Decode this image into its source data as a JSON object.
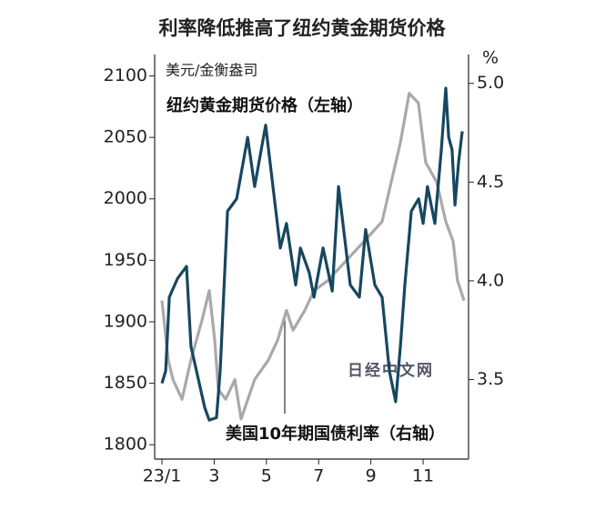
{
  "chart_data": {
    "type": "line",
    "title": "利率降低推高了纽约黄金期货价格",
    "y_label": "美元/金衡盎司",
    "y2_label": "%",
    "annotation": "日经中文网",
    "xlim": [
      0.72,
      12.74
    ],
    "xticks": [
      {
        "value": 1,
        "label": "23/1"
      },
      3,
      5,
      7,
      9,
      11
    ],
    "ylim": [
      1792,
      2110
    ],
    "yticks": [
      1800,
      1850,
      1900,
      1950,
      2000,
      2050,
      2100
    ],
    "y2lim": [
      3.12,
      5.1
    ],
    "y2ticks": [
      {
        "value": 3.5,
        "label": "3.5"
      },
      {
        "value": 4,
        "label": "4.0"
      },
      {
        "value": 4.5,
        "label": "4.5"
      },
      {
        "value": 5,
        "label": "5.0"
      }
    ],
    "series": [
      {
        "name": "纽约黄金期货价格（左轴）",
        "color": "#17475f",
        "axis": "y",
        "x": [
          1.0,
          1.14,
          1.28,
          1.59,
          1.94,
          2.11,
          2.64,
          2.81,
          3.09,
          3.23,
          3.51,
          3.86,
          4.28,
          4.55,
          4.97,
          5.25,
          5.53,
          5.77,
          6.12,
          6.3,
          6.64,
          6.82,
          7.17,
          7.52,
          7.76,
          8.21,
          8.56,
          8.8,
          9.15,
          9.43,
          9.71,
          9.95,
          10.13,
          10.3,
          10.55,
          10.83,
          11.0,
          11.17,
          11.45,
          11.7,
          11.87,
          11.98,
          12.11,
          12.22,
          12.36,
          12.5
        ],
        "values": [
          1850,
          1860,
          1920,
          1935,
          1945,
          1880,
          1830,
          1820,
          1822,
          1860,
          1990,
          2000,
          2050,
          2010,
          2060,
          2010,
          1960,
          1980,
          1930,
          1960,
          1940,
          1920,
          1960,
          1925,
          2010,
          1930,
          1920,
          1975,
          1930,
          1920,
          1860,
          1835,
          1880,
          1930,
          1990,
          2000,
          1980,
          2010,
          1980,
          2040,
          2090,
          2050,
          2040,
          1995,
          2030,
          2055
        ]
      },
      {
        "name": "美国10年期国债利率（右轴）",
        "color": "#a9a9a9",
        "axis": "y2",
        "x": [
          1.0,
          1.24,
          1.42,
          1.77,
          2.11,
          2.53,
          2.81,
          3.02,
          3.16,
          3.44,
          3.79,
          4.03,
          4.55,
          5.08,
          5.43,
          5.77,
          6.02,
          6.47,
          6.82,
          7.34,
          8.04,
          8.74,
          9.43,
          9.78,
          10.13,
          10.47,
          10.82,
          11.1,
          11.52,
          11.87,
          12.15,
          12.32,
          12.57
        ],
        "values": [
          3.9,
          3.6,
          3.5,
          3.4,
          3.6,
          3.8,
          3.95,
          3.7,
          3.45,
          3.4,
          3.5,
          3.3,
          3.5,
          3.6,
          3.7,
          3.85,
          3.75,
          3.85,
          3.95,
          4.0,
          4.1,
          4.2,
          4.3,
          4.5,
          4.7,
          4.95,
          4.9,
          4.6,
          4.5,
          4.3,
          4.2,
          4.0,
          3.9
        ]
      }
    ]
  }
}
